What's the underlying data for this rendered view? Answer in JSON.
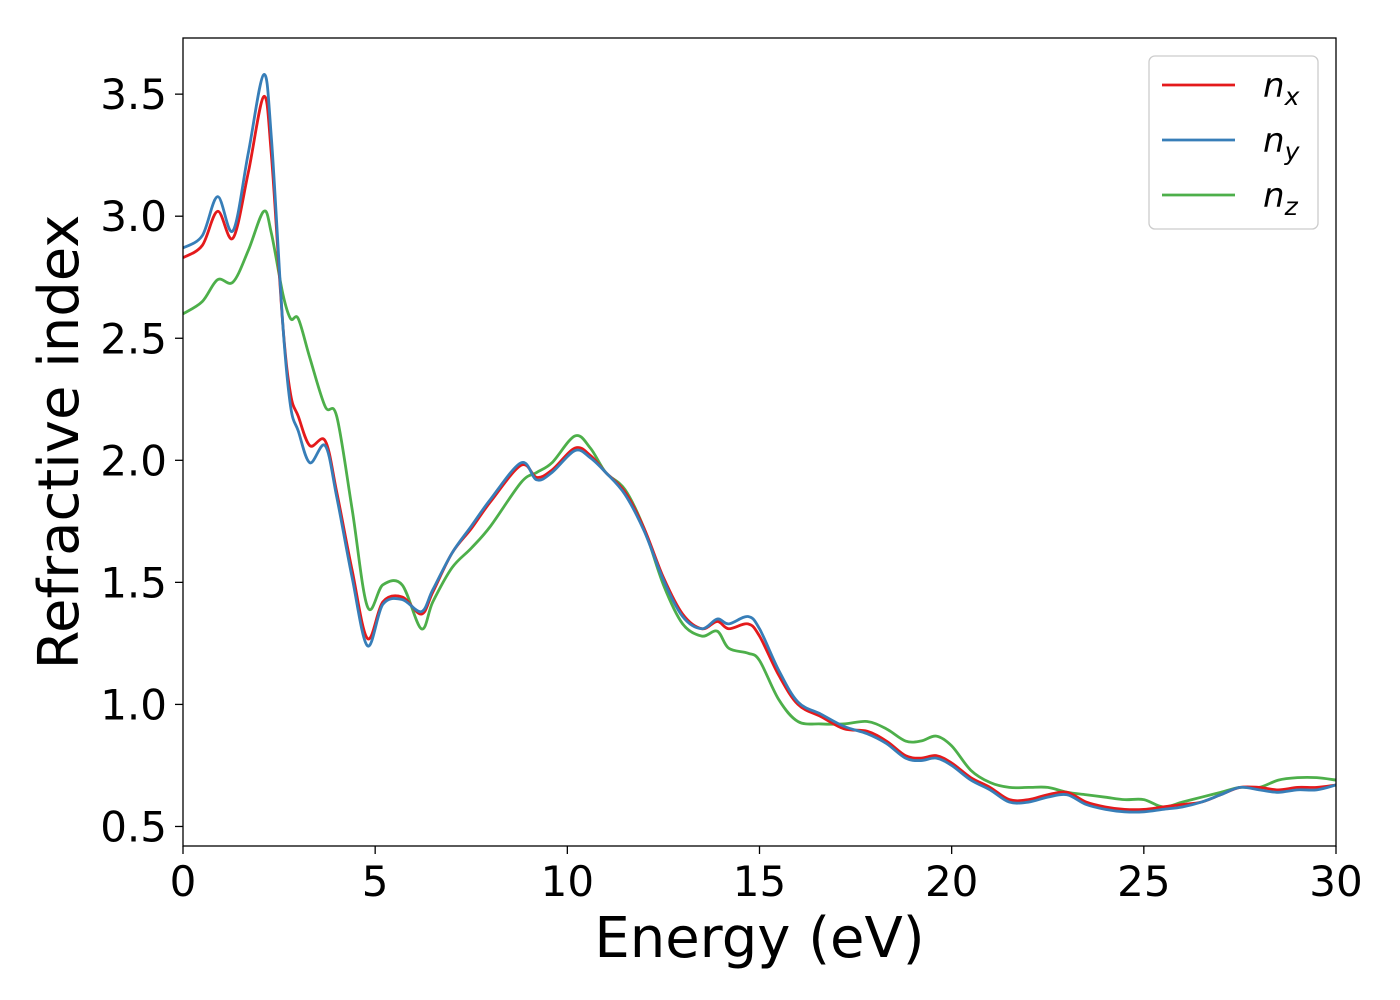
{
  "chart_data": {
    "type": "line",
    "xlabel": "Energy (eV)",
    "ylabel": "Refractive index",
    "xlim": [
      0,
      30
    ],
    "ylim": [
      0.42,
      3.73
    ],
    "xticks": [
      0,
      5,
      10,
      15,
      20,
      25,
      30
    ],
    "yticks": [
      0.5,
      1.0,
      1.5,
      2.0,
      2.5,
      3.0,
      3.5
    ],
    "xtick_labels": [
      "0",
      "5",
      "10",
      "15",
      "20",
      "25",
      "30"
    ],
    "ytick_labels": [
      "0.5",
      "1.0",
      "1.5",
      "2.0",
      "2.5",
      "3.0",
      "3.5"
    ],
    "grid": false,
    "legend_position": "top-right",
    "series": [
      {
        "name": "n_x",
        "base": "n",
        "sub": "x",
        "color": "#e41a1c",
        "x": [
          0,
          0.5,
          0.9,
          1.3,
          1.7,
          2.1,
          2.3,
          2.6,
          2.8,
          3.0,
          3.3,
          3.7,
          4.0,
          4.4,
          4.8,
          5.2,
          5.7,
          6.2,
          6.5,
          7.0,
          7.5,
          8.0,
          8.8,
          9.2,
          9.6,
          10.2,
          10.6,
          11.0,
          11.5,
          12.0,
          12.5,
          13.0,
          13.5,
          13.9,
          14.2,
          14.7,
          15.0,
          15.5,
          16.0,
          16.6,
          17.2,
          17.8,
          18.3,
          18.8,
          19.2,
          19.6,
          20.0,
          20.5,
          21.0,
          21.5,
          22.0,
          22.5,
          23.0,
          23.5,
          24.0,
          24.5,
          25.0,
          25.5,
          26.0,
          26.5,
          27.0,
          27.5,
          28.0,
          28.5,
          29.0,
          29.5,
          30.0
        ],
        "y": [
          2.83,
          2.88,
          3.02,
          2.91,
          3.18,
          3.49,
          3.25,
          2.55,
          2.27,
          2.18,
          2.06,
          2.08,
          1.87,
          1.55,
          1.27,
          1.42,
          1.44,
          1.37,
          1.46,
          1.62,
          1.72,
          1.83,
          1.98,
          1.93,
          1.96,
          2.05,
          2.02,
          1.95,
          1.87,
          1.72,
          1.52,
          1.37,
          1.31,
          1.34,
          1.31,
          1.33,
          1.28,
          1.12,
          1.0,
          0.95,
          0.9,
          0.89,
          0.85,
          0.79,
          0.78,
          0.79,
          0.76,
          0.7,
          0.66,
          0.61,
          0.61,
          0.63,
          0.64,
          0.6,
          0.58,
          0.57,
          0.57,
          0.58,
          0.59,
          0.6,
          0.63,
          0.66,
          0.66,
          0.65,
          0.66,
          0.66,
          0.67
        ]
      },
      {
        "name": "n_y",
        "base": "n",
        "sub": "y",
        "color": "#377eb8",
        "x": [
          0,
          0.5,
          0.9,
          1.3,
          1.7,
          2.1,
          2.3,
          2.6,
          2.8,
          3.0,
          3.3,
          3.7,
          4.0,
          4.4,
          4.8,
          5.2,
          5.7,
          6.2,
          6.5,
          7.0,
          7.5,
          8.0,
          8.8,
          9.2,
          9.6,
          10.2,
          10.6,
          11.0,
          11.5,
          12.0,
          12.5,
          13.0,
          13.5,
          13.9,
          14.2,
          14.7,
          15.0,
          15.5,
          16.0,
          16.6,
          17.2,
          17.8,
          18.3,
          18.8,
          19.2,
          19.6,
          20.0,
          20.5,
          21.0,
          21.5,
          22.0,
          22.5,
          23.0,
          23.5,
          24.0,
          24.5,
          25.0,
          25.5,
          26.0,
          26.5,
          27.0,
          27.5,
          28.0,
          28.5,
          29.0,
          29.5,
          30.0
        ],
        "y": [
          2.87,
          2.92,
          3.08,
          2.94,
          3.26,
          3.58,
          3.32,
          2.55,
          2.22,
          2.12,
          1.99,
          2.06,
          1.85,
          1.52,
          1.24,
          1.41,
          1.43,
          1.38,
          1.47,
          1.62,
          1.73,
          1.84,
          1.99,
          1.92,
          1.95,
          2.04,
          2.01,
          1.95,
          1.86,
          1.71,
          1.51,
          1.36,
          1.31,
          1.35,
          1.33,
          1.36,
          1.31,
          1.14,
          1.01,
          0.96,
          0.91,
          0.88,
          0.84,
          0.78,
          0.77,
          0.78,
          0.75,
          0.69,
          0.65,
          0.6,
          0.6,
          0.62,
          0.63,
          0.59,
          0.57,
          0.56,
          0.56,
          0.57,
          0.58,
          0.6,
          0.63,
          0.66,
          0.65,
          0.64,
          0.65,
          0.65,
          0.67
        ]
      },
      {
        "name": "n_z",
        "base": "n",
        "sub": "z",
        "color": "#4daf4a",
        "x": [
          0,
          0.5,
          0.9,
          1.3,
          1.7,
          2.1,
          2.3,
          2.6,
          2.8,
          3.0,
          3.3,
          3.7,
          4.0,
          4.4,
          4.8,
          5.2,
          5.7,
          6.2,
          6.5,
          7.0,
          7.5,
          8.0,
          8.8,
          9.2,
          9.6,
          10.2,
          10.6,
          11.0,
          11.5,
          12.0,
          12.5,
          13.0,
          13.5,
          13.9,
          14.2,
          14.7,
          15.0,
          15.5,
          16.0,
          16.6,
          17.2,
          17.8,
          18.3,
          18.8,
          19.2,
          19.6,
          20.0,
          20.5,
          21.0,
          21.5,
          22.0,
          22.5,
          23.0,
          23.5,
          24.0,
          24.5,
          25.0,
          25.5,
          26.0,
          26.5,
          27.0,
          27.5,
          28.0,
          28.5,
          29.0,
          29.5,
          30.0
        ],
        "y": [
          2.6,
          2.65,
          2.74,
          2.73,
          2.86,
          3.02,
          2.93,
          2.68,
          2.58,
          2.58,
          2.42,
          2.22,
          2.18,
          1.8,
          1.4,
          1.49,
          1.49,
          1.31,
          1.42,
          1.56,
          1.64,
          1.73,
          1.91,
          1.95,
          1.99,
          2.1,
          2.05,
          1.95,
          1.88,
          1.72,
          1.49,
          1.33,
          1.28,
          1.3,
          1.23,
          1.21,
          1.18,
          1.02,
          0.93,
          0.92,
          0.92,
          0.93,
          0.9,
          0.85,
          0.85,
          0.87,
          0.83,
          0.73,
          0.68,
          0.66,
          0.66,
          0.66,
          0.64,
          0.63,
          0.62,
          0.61,
          0.61,
          0.58,
          0.6,
          0.62,
          0.64,
          0.66,
          0.66,
          0.69,
          0.7,
          0.7,
          0.69
        ]
      }
    ]
  }
}
